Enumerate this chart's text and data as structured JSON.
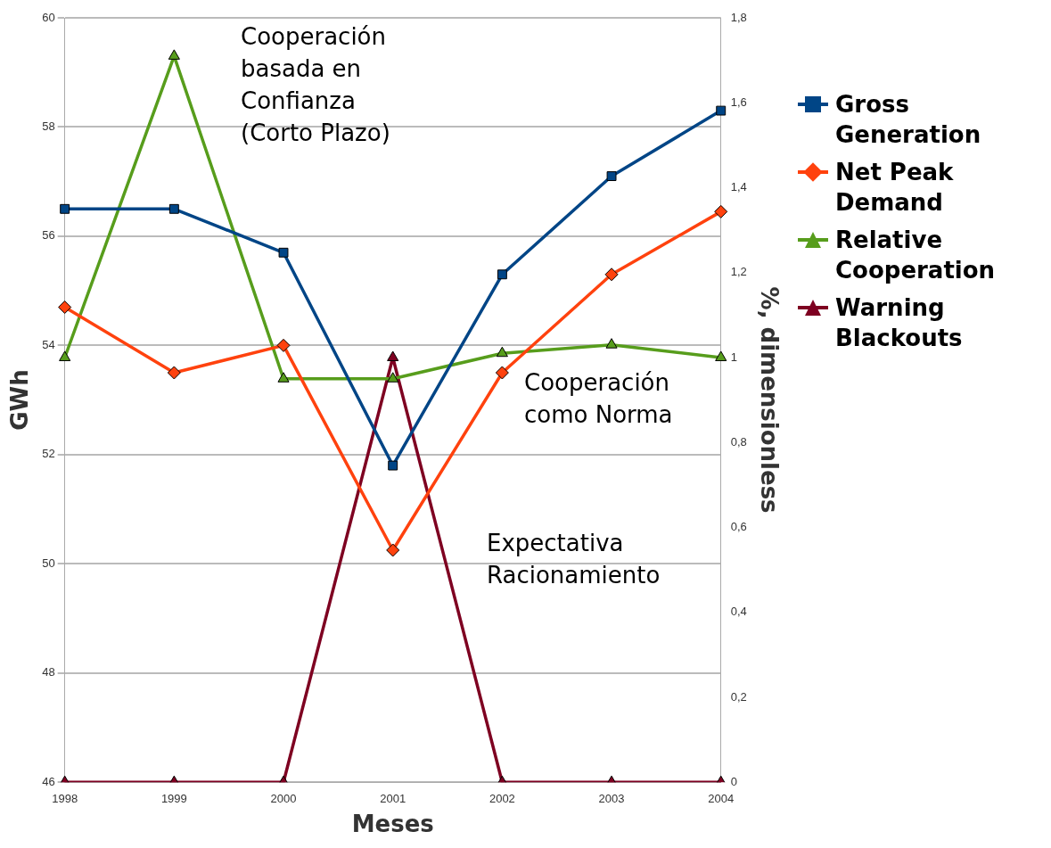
{
  "chart_data": {
    "type": "line",
    "categories": [
      "1998",
      "1999",
      "2000",
      "2001",
      "2002",
      "2003",
      "2004"
    ],
    "series": [
      {
        "name": "Gross Generation",
        "color": "#004586",
        "marker": "square",
        "values": [
          56.5,
          56.5,
          55.7,
          51.8,
          55.3,
          57.1,
          58.3
        ]
      },
      {
        "name": "Net Peak Demand",
        "color": "#ff420e",
        "marker": "diamond",
        "values": [
          54.7,
          53.5,
          54.0,
          50.25,
          53.5,
          55.3,
          56.45
        ]
      },
      {
        "name": "Relative Cooperation",
        "color": "#579d1c",
        "marker": "triangle",
        "axis": "y2",
        "values": [
          1.0,
          1.71,
          0.95,
          0.95,
          1.01,
          1.03,
          1.0
        ]
      },
      {
        "name": "Warning Blackouts",
        "color": "#7e0021",
        "marker": "triangle",
        "axis": "y2",
        "values": [
          0,
          0,
          0,
          1,
          0,
          0,
          0
        ]
      }
    ],
    "xlabel": "Meses",
    "ylabel": "GWh",
    "y2label": "%, dimensionless",
    "ylim": [
      46,
      60
    ],
    "yticks": [
      46,
      48,
      50,
      52,
      54,
      56,
      58,
      60
    ],
    "y2lim": [
      0,
      1.8
    ],
    "y2ticks": [
      0,
      {
        "value": 0.2,
        "label": "0,2"
      },
      {
        "value": 0.4,
        "label": "0,4"
      },
      {
        "value": 0.6,
        "label": "0,6"
      },
      {
        "value": 0.8,
        "label": "0,8"
      },
      1,
      {
        "value": 1.2,
        "label": "1,2"
      },
      {
        "value": 1.4,
        "label": "1,4"
      },
      {
        "value": 1.6,
        "label": "1,6"
      },
      {
        "value": 1.8,
        "label": "1,8"
      }
    ],
    "annotations": [
      "Cooperación\nbasada en\nConfianza\n(Corto Plazo)",
      "Cooperación\ncomo Norma",
      "Expectativa\nRacionamiento"
    ],
    "grid": "y",
    "legend": "right",
    "line_style": "solid"
  }
}
